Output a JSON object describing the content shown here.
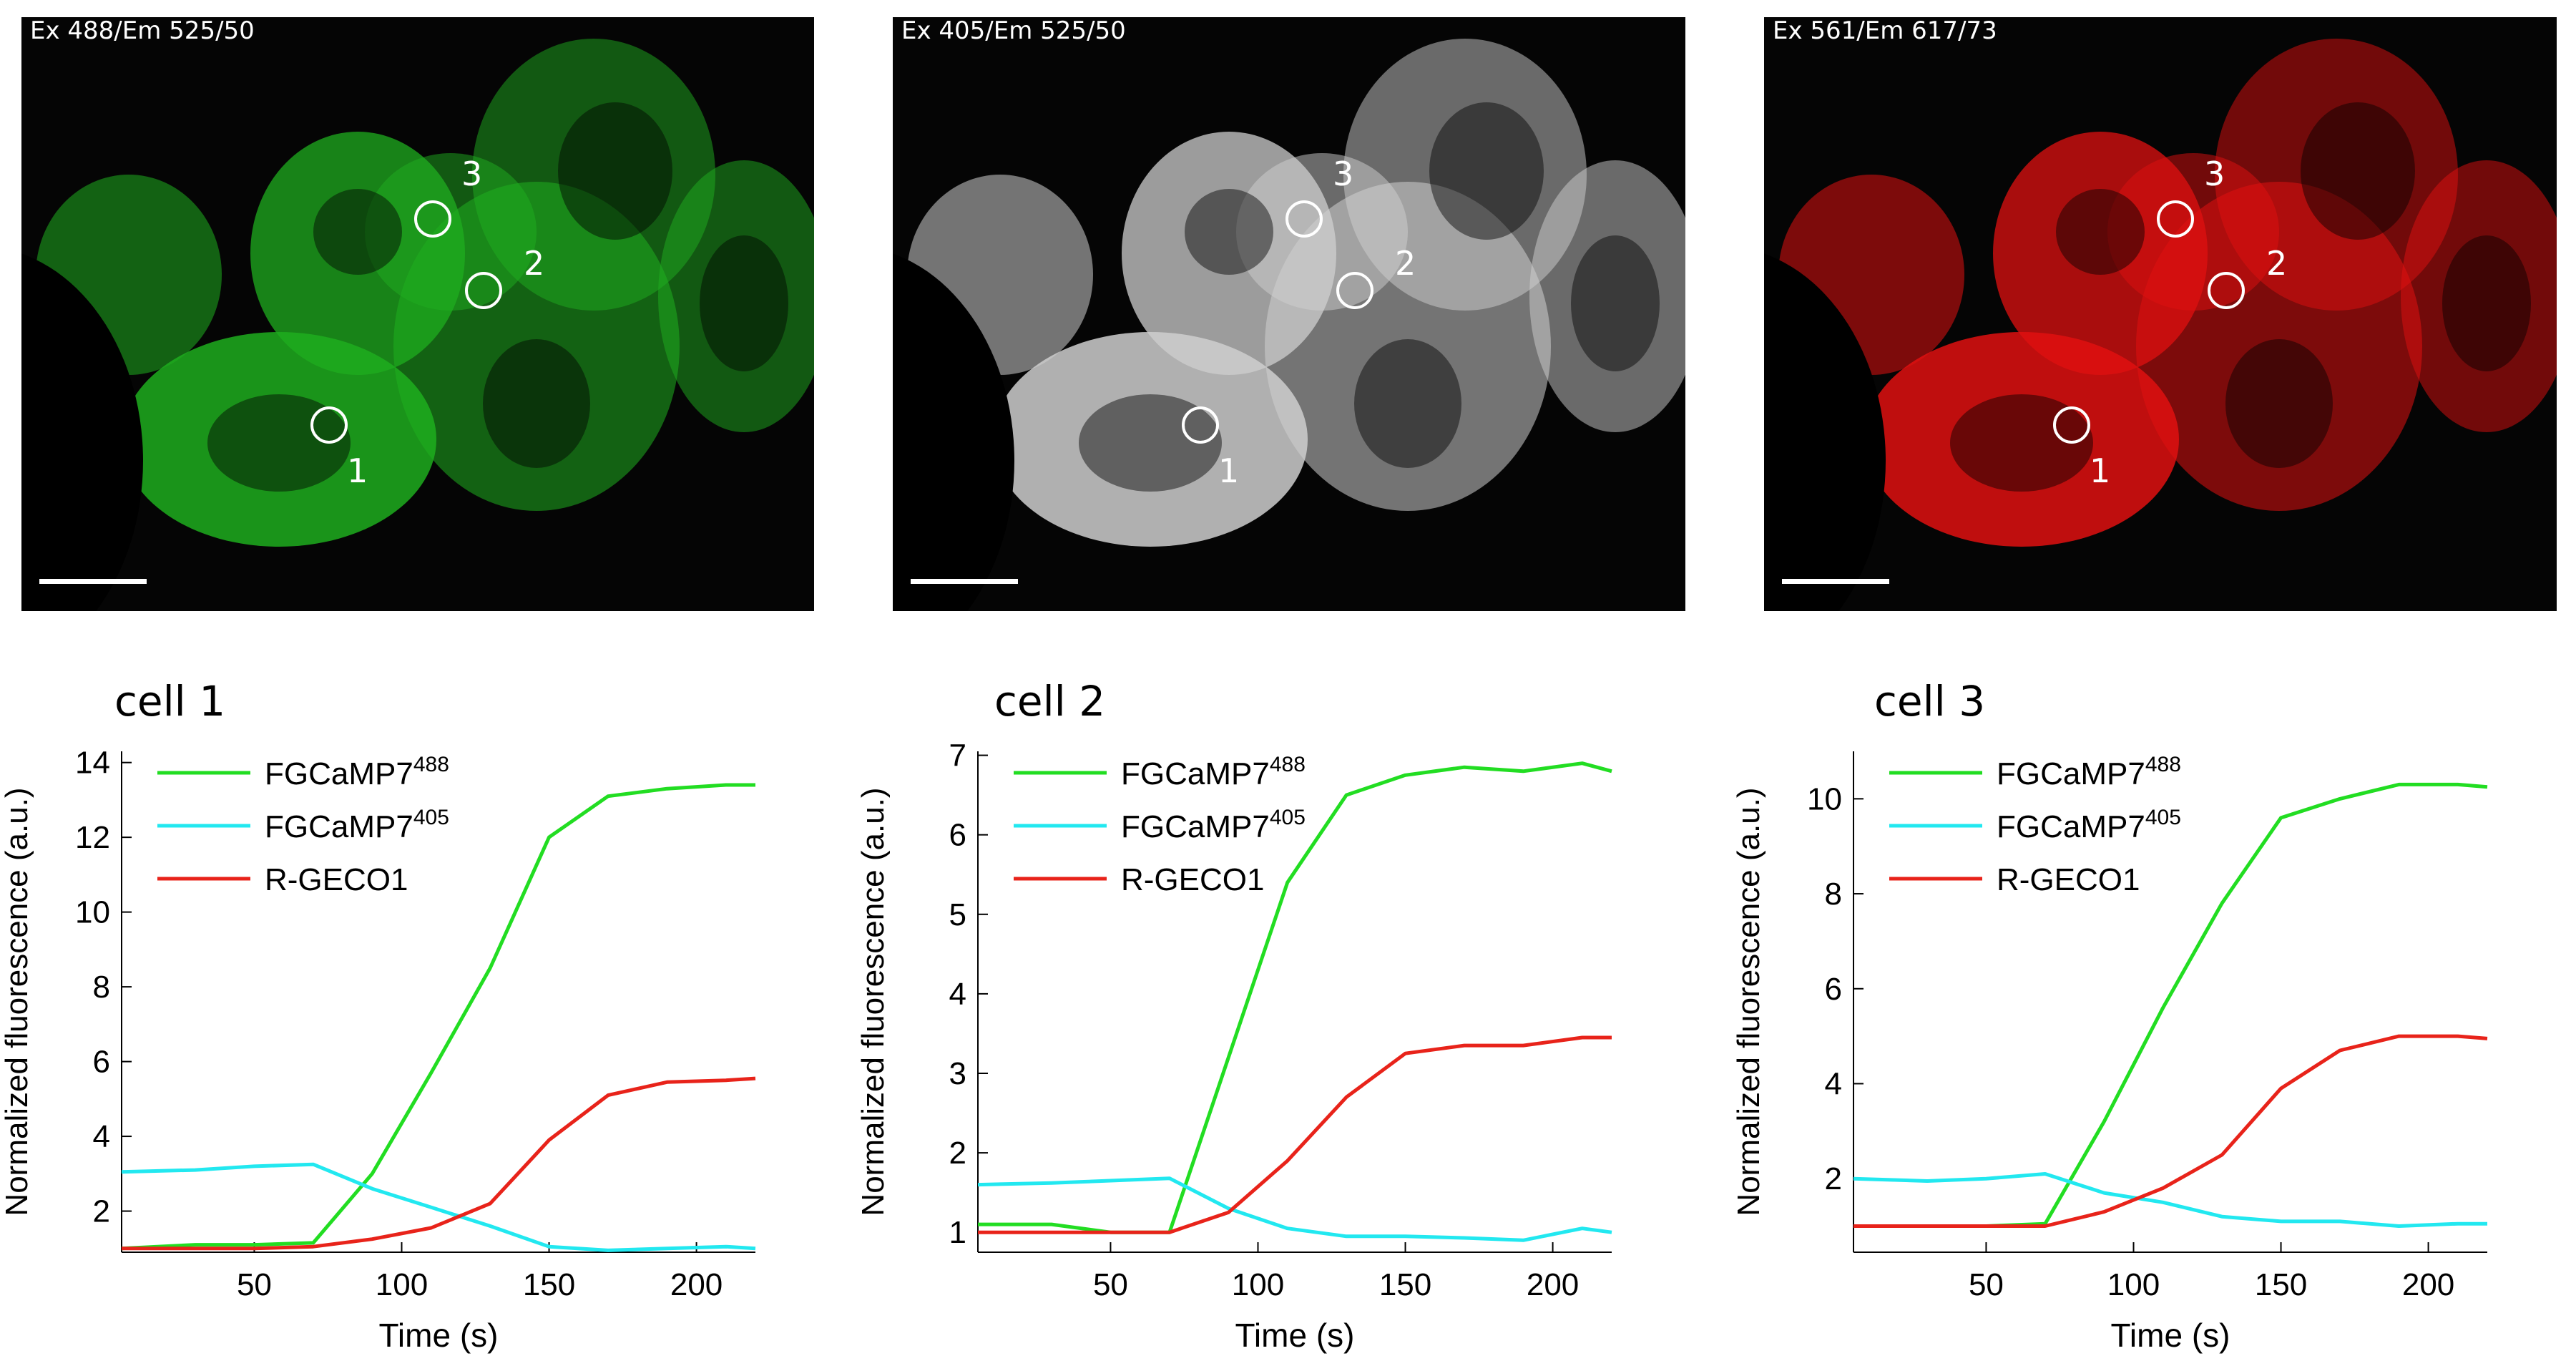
{
  "figure_background": "#ffffff",
  "micrographs": [
    {
      "label": "Ex 488/Em 525/50",
      "channel_color": "#1fae1f",
      "roi_labels": [
        "1",
        "2",
        "3"
      ]
    },
    {
      "label": "Ex 405/Em 525/50",
      "channel_color": "#cfcfcf",
      "roi_labels": [
        "1",
        "2",
        "3"
      ]
    },
    {
      "label": "Ex 561/Em 617/73",
      "channel_color": "#e01010",
      "roi_labels": [
        "1",
        "2",
        "3"
      ]
    }
  ],
  "chart_data": [
    {
      "type": "line",
      "title": "cell 1",
      "xlabel": "Time (s)",
      "ylabel": "Normalized fluorescence (a.u.)",
      "xlim": [
        5,
        220
      ],
      "ylim": [
        0.9,
        14.3
      ],
      "xticks": [
        50,
        100,
        150,
        200
      ],
      "yticks": [
        2,
        4,
        6,
        8,
        10,
        12,
        14
      ],
      "legend_position": "top-left",
      "x": [
        5,
        30,
        50,
        70,
        90,
        110,
        130,
        150,
        170,
        190,
        210,
        220
      ],
      "series": [
        {
          "name": "FGCaMP7",
          "superscript": "488",
          "color": "#22dd22",
          "values": [
            1.0,
            1.1,
            1.1,
            1.15,
            3.0,
            5.7,
            8.5,
            12.0,
            13.1,
            13.3,
            13.4,
            13.4
          ]
        },
        {
          "name": "FGCaMP7",
          "superscript": "405",
          "color": "#22e8f0",
          "values": [
            3.05,
            3.1,
            3.2,
            3.25,
            2.6,
            2.1,
            1.6,
            1.05,
            0.95,
            1.0,
            1.05,
            1.0
          ]
        },
        {
          "name": "R-GECO1",
          "color": "#e8231a",
          "values": [
            1.0,
            1.0,
            1.0,
            1.05,
            1.25,
            1.55,
            2.2,
            3.9,
            5.1,
            5.45,
            5.5,
            5.55
          ]
        }
      ]
    },
    {
      "type": "line",
      "title": "cell 2",
      "xlabel": "Time (s)",
      "ylabel": "Normalized fluorescence (a.u.)",
      "xlim": [
        5,
        220
      ],
      "ylim": [
        0.75,
        7.05
      ],
      "xticks": [
        50,
        100,
        150,
        200
      ],
      "yticks": [
        1,
        2,
        3,
        4,
        5,
        6,
        7
      ],
      "legend_position": "top-left",
      "x": [
        5,
        30,
        50,
        70,
        90,
        110,
        130,
        150,
        170,
        190,
        210,
        220
      ],
      "series": [
        {
          "name": "FGCaMP7",
          "superscript": "488",
          "color": "#22dd22",
          "values": [
            1.1,
            1.1,
            1.0,
            1.0,
            3.2,
            5.4,
            6.5,
            6.75,
            6.85,
            6.8,
            6.9,
            6.8
          ]
        },
        {
          "name": "FGCaMP7",
          "superscript": "405",
          "color": "#22e8f0",
          "values": [
            1.6,
            1.62,
            1.65,
            1.68,
            1.3,
            1.05,
            0.95,
            0.95,
            0.93,
            0.9,
            1.05,
            1.0
          ]
        },
        {
          "name": "R-GECO1",
          "color": "#e8231a",
          "values": [
            1.0,
            1.0,
            1.0,
            1.0,
            1.25,
            1.9,
            2.7,
            3.25,
            3.35,
            3.35,
            3.45,
            3.45
          ]
        }
      ]
    },
    {
      "type": "line",
      "title": "cell 3",
      "xlabel": "Time (s)",
      "ylabel": "Normalized fluorescence (a.u.)",
      "xlim": [
        5,
        220
      ],
      "ylim": [
        0.45,
        11.0
      ],
      "xticks": [
        50,
        100,
        150,
        200
      ],
      "yticks": [
        2,
        4,
        6,
        8,
        10
      ],
      "legend_position": "top-left",
      "x": [
        5,
        30,
        50,
        70,
        90,
        110,
        130,
        150,
        170,
        190,
        210,
        220
      ],
      "series": [
        {
          "name": "FGCaMP7",
          "superscript": "488",
          "color": "#22dd22",
          "values": [
            1.0,
            1.0,
            1.0,
            1.05,
            3.2,
            5.6,
            7.8,
            9.6,
            10.0,
            10.3,
            10.3,
            10.25
          ]
        },
        {
          "name": "FGCaMP7",
          "superscript": "405",
          "color": "#22e8f0",
          "values": [
            2.0,
            1.95,
            2.0,
            2.1,
            1.7,
            1.5,
            1.2,
            1.1,
            1.1,
            1.0,
            1.05,
            1.05
          ]
        },
        {
          "name": "R-GECO1",
          "color": "#e8231a",
          "values": [
            1.0,
            1.0,
            1.0,
            1.0,
            1.3,
            1.8,
            2.5,
            3.9,
            4.7,
            5.0,
            5.0,
            4.95
          ]
        }
      ]
    }
  ]
}
